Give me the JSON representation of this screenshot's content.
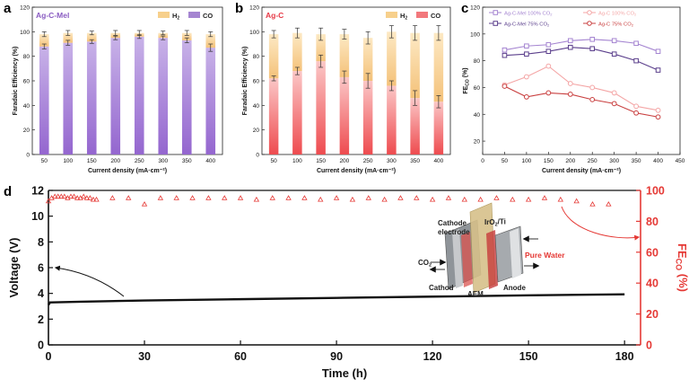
{
  "figure_labels": {
    "a": "a",
    "b": "b",
    "c": "c",
    "d": "d"
  },
  "chart_data": [
    {
      "id": "a",
      "type": "bar",
      "stacked": true,
      "title": "Ag-C-Mel",
      "title_color": "#8a5cc2",
      "xlabel": "Current density (mA·cm⁻²)",
      "ylabel": "Faradaic Efficiency (%)",
      "categories": [
        "50",
        "100",
        "150",
        "200",
        "250",
        "300",
        "350",
        "400"
      ],
      "ylim": [
        0,
        120
      ],
      "yticks": [
        "0",
        "20",
        "40",
        "60",
        "80",
        "100",
        "120"
      ],
      "series": [
        {
          "name": "CO",
          "label": "CO",
          "color": "#a585d1",
          "values": [
            88,
            91,
            92,
            95,
            96,
            95,
            93,
            87
          ],
          "errors": [
            2,
            2,
            1.5,
            1.5,
            1.5,
            1.5,
            2,
            3
          ]
        },
        {
          "name": "H2",
          "label": "H",
          "label_sub": "2",
          "color": "#f7d08c",
          "values": [
            10,
            8,
            7,
            4,
            3,
            4,
            6,
            11
          ],
          "errors": [
            2,
            2,
            1.5,
            2,
            2,
            1.5,
            2,
            2
          ]
        }
      ]
    },
    {
      "id": "b",
      "type": "bar",
      "stacked": true,
      "title": "Ag-C",
      "title_color": "#e63946",
      "xlabel": "Current density (mA·cm⁻²)",
      "ylabel": "Faradaic Efficiency (%)",
      "categories": [
        "50",
        "100",
        "150",
        "200",
        "250",
        "300",
        "350",
        "400"
      ],
      "ylim": [
        0,
        120
      ],
      "yticks": [
        "0",
        "20",
        "40",
        "60",
        "80",
        "100",
        "120"
      ],
      "series": [
        {
          "name": "CO",
          "label": "CO",
          "color": "#f2787c",
          "values": [
            62,
            68,
            76,
            63,
            60,
            56,
            46,
            43
          ],
          "errors": [
            2,
            3,
            5,
            5,
            6,
            4,
            6,
            5
          ]
        },
        {
          "name": "H2",
          "label": "H",
          "label_sub": "2",
          "color": "#f7d08c",
          "values": [
            36,
            31,
            22,
            35,
            35,
            44,
            53,
            56
          ],
          "errors": [
            3,
            4,
            5,
            4,
            5,
            5,
            6,
            6
          ]
        }
      ]
    },
    {
      "id": "c",
      "type": "line",
      "xlabel": "Current density (mA·cm⁻²)",
      "ylabel": "FE",
      "ylabel_sub": "CO",
      "ylabel_suffix": " (%)",
      "x": [
        50,
        100,
        150,
        200,
        250,
        300,
        350,
        400
      ],
      "xlim": [
        0,
        450
      ],
      "xticks": [
        "0",
        "50",
        "100",
        "150",
        "200",
        "250",
        "300",
        "350",
        "400",
        "450"
      ],
      "ylim": [
        10,
        120
      ],
      "yticks": [
        "20",
        "40",
        "60",
        "80",
        "100",
        "120"
      ],
      "series": [
        {
          "name": "Ag-C-Mel 100% CO2",
          "label": "Ag-C-Mel 100% CO",
          "label_sub": "2",
          "color": "#a585d1",
          "values": [
            88,
            91,
            92,
            95,
            96,
            95,
            93,
            87
          ]
        },
        {
          "name": "Ag-C-Mel 75% CO2",
          "label": "Ag-C-Mel 75% CO",
          "label_sub": "2",
          "color": "#5b3f8c",
          "values": [
            84,
            85,
            87,
            90,
            89,
            85,
            80,
            73
          ]
        },
        {
          "name": "Ag-C 100% CO2",
          "label": "Ag-C 100% CO",
          "label_sub": "2",
          "color": "#f4a6a6",
          "values": [
            62,
            68,
            76,
            63,
            60,
            56,
            46,
            43
          ]
        },
        {
          "name": "Ag-C 75% CO2",
          "label": "Ag-C 75% CO",
          "label_sub": "2",
          "color": "#c94040",
          "values": [
            61,
            53,
            56,
            55,
            51,
            48,
            41,
            38
          ]
        }
      ]
    },
    {
      "id": "d",
      "type": "line",
      "xlabel": "Time (h)",
      "ylabel": "Voltage (V)",
      "ylabel2": "FE",
      "ylabel2_sub": "CO",
      "ylabel2_suffix": " (%)",
      "xlim": [
        0,
        185
      ],
      "xticks": [
        "0",
        "30",
        "60",
        "90",
        "120",
        "150",
        "180"
      ],
      "ylim": [
        0,
        12
      ],
      "yticks": [
        "0",
        "2",
        "4",
        "6",
        "8",
        "10",
        "12"
      ],
      "y2lim": [
        0,
        100
      ],
      "y2ticks": [
        "0",
        "20",
        "40",
        "60",
        "80",
        "100"
      ],
      "series": [
        {
          "name": "Voltage",
          "axis": "left",
          "color": "#111111",
          "x": [
            0,
            0.5,
            1,
            10,
            30,
            60,
            90,
            120,
            150,
            180
          ],
          "values": [
            3.1,
            3.3,
            3.3,
            3.35,
            3.45,
            3.55,
            3.65,
            3.75,
            3.85,
            3.93
          ]
        },
        {
          "name": "FE CO",
          "axis": "right",
          "color": "#e53935",
          "marker": "triangle",
          "x": [
            0,
            1,
            2,
            3,
            4,
            5,
            6,
            7,
            8,
            9,
            10,
            11,
            12,
            13,
            14,
            15,
            20,
            25,
            30,
            35,
            40,
            45,
            50,
            55,
            60,
            65,
            70,
            75,
            80,
            85,
            90,
            95,
            100,
            105,
            110,
            115,
            120,
            125,
            130,
            135,
            140,
            145,
            150,
            155,
            160,
            165,
            170,
            175
          ],
          "values": [
            93,
            95,
            96,
            96,
            96,
            96,
            95,
            96,
            96,
            95,
            95,
            96,
            95,
            95,
            94,
            94,
            95,
            95,
            91,
            95,
            95,
            95,
            95,
            95,
            95,
            94,
            95,
            95,
            95,
            94,
            95,
            94,
            95,
            94,
            95,
            95,
            94,
            95,
            94,
            94,
            95,
            94,
            94,
            95,
            94,
            93,
            91,
            91
          ]
        }
      ],
      "inset": {
        "title": "Pure Water",
        "title_color": "#e53935",
        "labels": {
          "cathode_electrode": "Cathode\nelectrode",
          "iro2_ti": "IrO",
          "iro2_sub": "2",
          "iro2_suffix": "/Ti",
          "co2": "CO",
          "co2_sub": "2",
          "cathode": "Cathod",
          "aem": "AEM",
          "anode": "Anode"
        }
      }
    }
  ]
}
